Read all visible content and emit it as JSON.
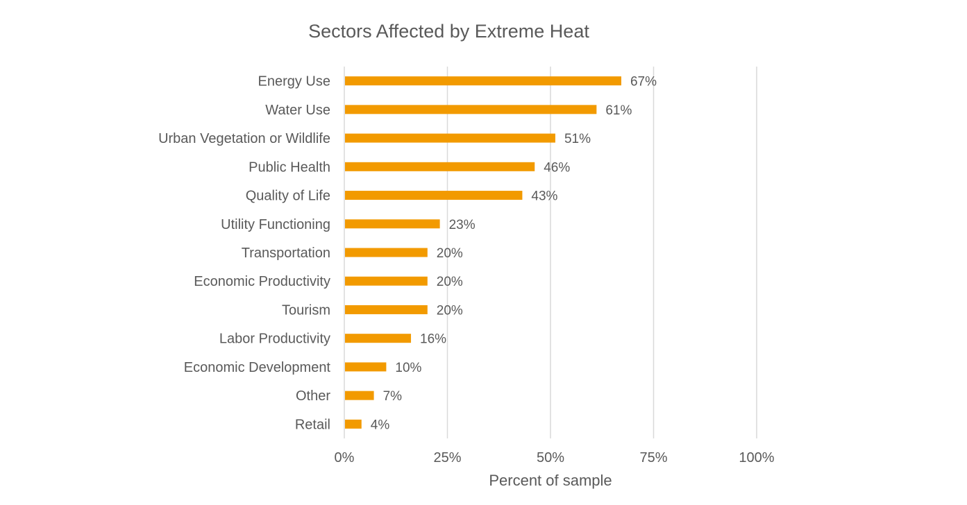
{
  "chart_data": {
    "type": "bar",
    "orientation": "horizontal",
    "title": "Sectors Affected by Extreme Heat",
    "xlabel": "Percent of sample",
    "ylabel": "",
    "xlim": [
      0,
      100
    ],
    "x_ticks": [
      "0%",
      "25%",
      "50%",
      "75%",
      "100%"
    ],
    "grid": true,
    "bar_color": "#F29A00",
    "categories": [
      "Energy Use",
      "Water Use",
      "Urban Vegetation or Wildlife",
      "Public Health",
      "Quality of Life",
      "Utility Functioning",
      "Transportation",
      "Economic Productivity",
      "Tourism",
      "Labor Productivity",
      "Economic Development",
      "Other",
      "Retail"
    ],
    "values": [
      67,
      61,
      51,
      46,
      43,
      23,
      20,
      20,
      20,
      16,
      10,
      7,
      4
    ],
    "data_labels": [
      "67%",
      "61%",
      "51%",
      "46%",
      "43%",
      "23%",
      "20%",
      "20%",
      "20%",
      "16%",
      "10%",
      "7%",
      "4%"
    ]
  }
}
